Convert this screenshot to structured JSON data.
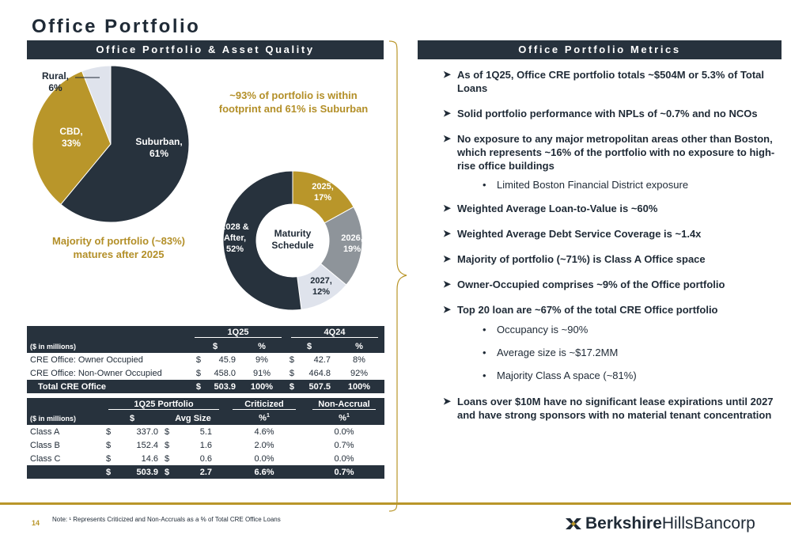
{
  "page": {
    "title": "Office Portfolio",
    "page_number": "14",
    "footnote": "Note: ¹ Represents Criticized and Non-Accruals as a % of Total CRE Office Loans",
    "logo_bold": "Berkshire",
    "logo_regular": "HillsBancorp"
  },
  "left": {
    "header": "Office Portfolio & Asset Quality",
    "callout_footprint": "~93% of portfolio is within footprint and 61% is Suburban",
    "callout_maturity": "Majority of portfolio (~83%) matures after 2025",
    "maturity_center_label": "Maturity Schedule"
  },
  "right": {
    "header": "Office Portfolio Metrics",
    "bullets": [
      {
        "text": "As of 1Q25, Office CRE portfolio totals ~$504M or 5.3% of Total Loans"
      },
      {
        "text": "Solid portfolio performance with NPLs of ~0.7% and no NCOs"
      },
      {
        "text": "No exposure to any major metropolitan areas other than Boston, which represents ~16% of the portfolio with no exposure to high-rise office buildings"
      },
      {
        "text": "Limited Boston Financial District exposure"
      },
      {
        "text": "Weighted Average Loan-to-Value is ~60%"
      },
      {
        "text": "Weighted Average Debt Service Coverage is ~1.4x"
      },
      {
        "text": "Majority of portfolio (~71%) is Class A Office space"
      },
      {
        "text": "Owner-Occupied comprises ~9% of the Office portfolio"
      },
      {
        "text": "Top 20 loan are ~67% of the total CRE Office portfolio"
      },
      {
        "text": "Occupancy is ~90%"
      },
      {
        "text": "Average size is ~$17.2MM"
      },
      {
        "text": "Majority Class A space (~81%)"
      },
      {
        "text": "Loans over $10M have no significant lease expirations until 2027 and have strong sponsors with no material tenant concentration"
      }
    ]
  },
  "table1": {
    "periods": [
      "1Q25",
      "4Q24"
    ],
    "units": "($ in millions)",
    "col_dollar": "$",
    "col_pct": "%",
    "rows": [
      {
        "label": "CRE Office: Owner Occupied",
        "q1_cur": "$",
        "q1_val": "45.9",
        "q1_pct": "9%",
        "q4_cur": "$",
        "q4_val": "42.7",
        "q4_pct": "8%"
      },
      {
        "label": "CRE Office: Non-Owner Occupied",
        "q1_cur": "$",
        "q1_val": "458.0",
        "q1_pct": "91%",
        "q4_cur": "$",
        "q4_val": "464.8",
        "q4_pct": "92%"
      }
    ],
    "total": {
      "label": "Total CRE Office",
      "q1_cur": "$",
      "q1_val": "503.9",
      "q1_pct": "100%",
      "q4_cur": "$",
      "q4_val": "507.5",
      "q4_pct": "100%"
    }
  },
  "table2": {
    "group_portfolio": "1Q25 Portfolio",
    "group_criticized": "Criticized",
    "group_nonaccrual": "Non-Accrual",
    "units": "($ in millions)",
    "col_dollar": "$",
    "col_avg": "Avg Size",
    "col_pct": "%",
    "sup": "1",
    "rows": [
      {
        "label": "Class A",
        "cur1": "$",
        "amount": "337.0",
        "cur2": "$",
        "avg": "5.1",
        "criticized": "4.6%",
        "nonaccrual": "0.0%"
      },
      {
        "label": "Class B",
        "cur1": "$",
        "amount": "152.4",
        "cur2": "$",
        "avg": "1.6",
        "criticized": "2.0%",
        "nonaccrual": "0.7%"
      },
      {
        "label": "Class C",
        "cur1": "$",
        "amount": "14.6",
        "cur2": "$",
        "avg": "0.6",
        "criticized": "0.0%",
        "nonaccrual": "0.0%"
      }
    ],
    "total": {
      "cur1": "$",
      "amount": "503.9",
      "cur2": "$",
      "avg": "2.7",
      "criticized": "6.6%",
      "nonaccrual": "0.7%"
    }
  },
  "chart_data": [
    {
      "type": "pie",
      "title": "",
      "categories": [
        "Suburban",
        "CBD",
        "Rural"
      ],
      "values": [
        61,
        33,
        6
      ],
      "labels": [
        "Suburban,\n61%",
        "CBD,\n33%",
        "Rural,\n6%"
      ],
      "colors": [
        "#27323d",
        "#b9962a",
        "#dfe3ec"
      ]
    },
    {
      "type": "pie",
      "title": "Maturity Schedule",
      "donut": true,
      "categories": [
        "2025",
        "2026",
        "2027",
        "2028 & After"
      ],
      "values": [
        17,
        19,
        12,
        52
      ],
      "labels": [
        "2025,\n17%",
        "2026,\n19%",
        "2027,\n12%",
        "2028 &\nAfter,\n52%"
      ],
      "colors": [
        "#b9962a",
        "#8e949a",
        "#dfe3ec",
        "#27323d"
      ]
    }
  ]
}
